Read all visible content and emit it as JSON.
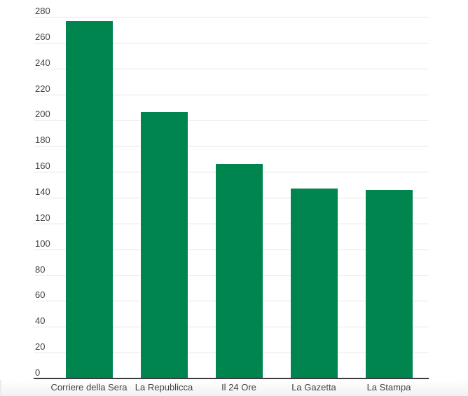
{
  "page": {
    "background": "#ffffff"
  },
  "chart_data": {
    "type": "bar",
    "title": "",
    "categories": [
      "Corriere della Sera",
      "La Republicca",
      "Il 24 Ore",
      "La Gazetta",
      "La Stampa"
    ],
    "values": [
      277,
      206,
      166,
      147,
      146
    ],
    "ylim": [
      0,
      280
    ],
    "ytick_step": 20,
    "ytick_labels": [
      "0",
      "20",
      "40",
      "60",
      "80",
      "100",
      "120",
      "140",
      "160",
      "180",
      "200",
      "220",
      "240",
      "260",
      "280"
    ],
    "xlabel": "",
    "ylabel": "",
    "grid": true,
    "legend": "none",
    "bar_color": "#00854e",
    "grid_color": "#e6e6e6",
    "axis_color": "#3c3c3c",
    "tick_label_color": "#424242"
  }
}
